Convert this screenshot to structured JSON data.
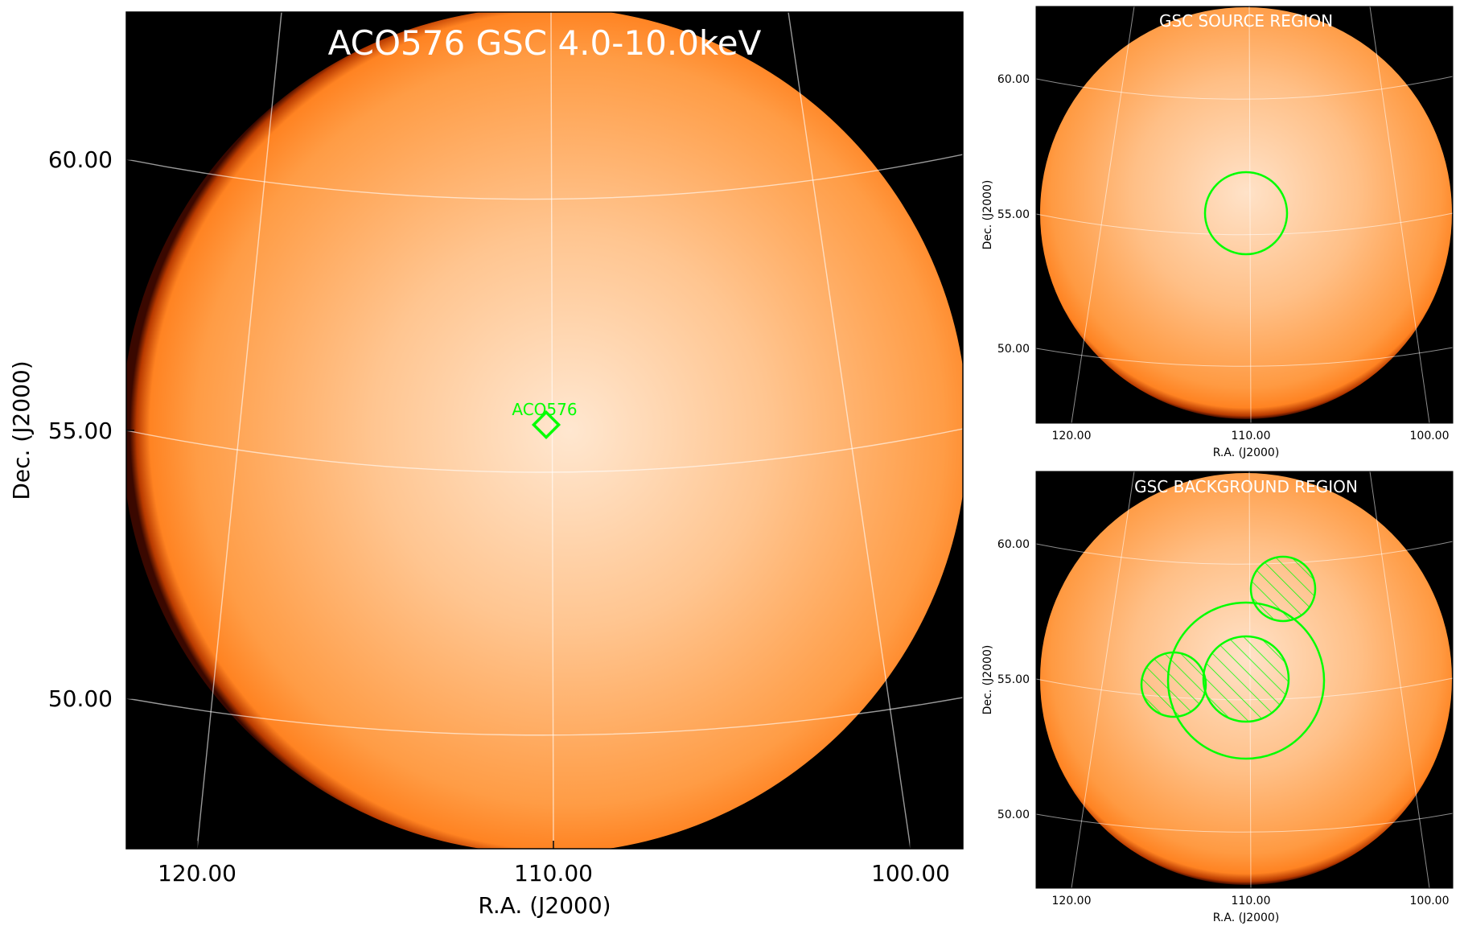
{
  "main": {
    "title": "ACO576 GSC 4.0-10.0keV",
    "xlabel": "R.A. (J2000)",
    "ylabel": "Dec. (J2000)",
    "x_ticks": [
      "120.00",
      "110.00",
      "100.00"
    ],
    "y_ticks": [
      "60.00",
      "55.00",
      "50.00"
    ],
    "marker_label": "ACO576"
  },
  "source_panel": {
    "title": "GSC SOURCE REGION",
    "xlabel": "R.A. (J2000)",
    "ylabel": "Dec. (J2000)",
    "x_ticks": [
      "120.00",
      "110.00",
      "100.00"
    ],
    "y_ticks": [
      "60.00",
      "55.00",
      "50.00"
    ]
  },
  "background_panel": {
    "title": "GSC BACKGROUND REGION",
    "xlabel": "R.A. (J2000)",
    "ylabel": "Dec. (J2000)",
    "x_ticks": [
      "120.00",
      "110.00",
      "100.00"
    ],
    "y_ticks": [
      "60.00",
      "55.00",
      "50.00"
    ]
  },
  "colors": {
    "disk_center": "#ffe6cf",
    "disk_mid": "#ffb77a",
    "disk_edge": "#ff8a2e",
    "disk_rim": "#8a1a00",
    "background": "#000000",
    "region": "#00ff00",
    "grid": "#ffffff"
  }
}
